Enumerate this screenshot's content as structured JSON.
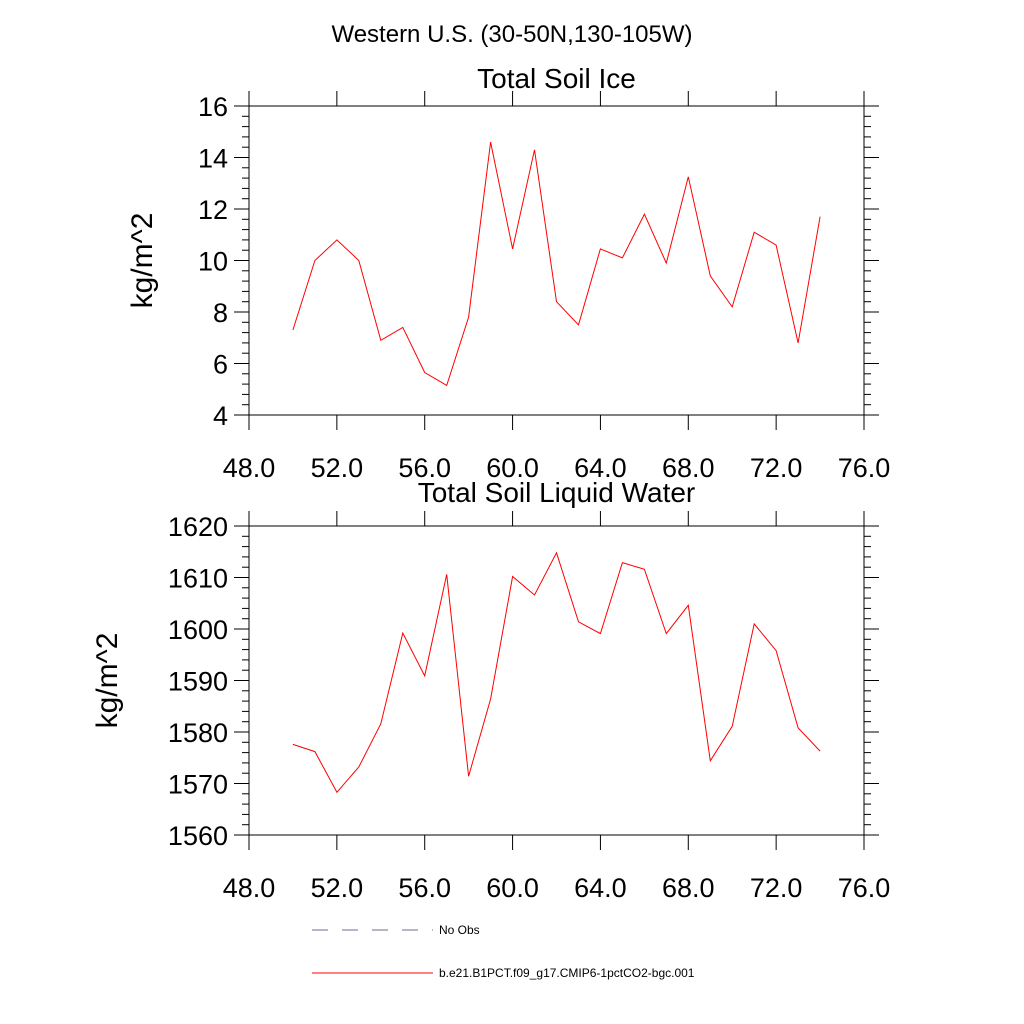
{
  "figure": {
    "title": "Western U.S. (30-50N,130-105W)"
  },
  "legend": {
    "placement": "bottom",
    "entries": [
      {
        "label": "No Obs",
        "style": "dashed",
        "color": "#6b6b9a"
      },
      {
        "label": "b.e21.B1PCT.f09_g17.CMIP6-1pctCO2-bgc.001",
        "style": "solid",
        "color": "#ff0000"
      }
    ]
  },
  "chart_data": [
    {
      "type": "line",
      "title": "Total Soil Ice",
      "xlabel": "",
      "ylabel": "kg/m^2",
      "xlim": [
        48,
        76
      ],
      "ylim": [
        4,
        16
      ],
      "xticks": [
        48,
        52,
        56,
        60,
        64,
        68,
        72,
        76
      ],
      "xtick_labels": [
        "48.0",
        "52.0",
        "56.0",
        "60.0",
        "64.0",
        "68.0",
        "72.0",
        "76.0"
      ],
      "yticks": [
        4,
        6,
        8,
        10,
        12,
        14,
        16
      ],
      "ytick_labels": [
        "4",
        "6",
        "8",
        "10",
        "12",
        "14",
        "16"
      ],
      "grid": false,
      "series": [
        {
          "name": "b.e21.B1PCT.f09_g17.CMIP6-1pctCO2-bgc.001",
          "color": "#ff0000",
          "x": [
            50,
            51,
            52,
            53,
            54,
            55,
            56,
            57,
            58,
            59,
            60,
            61,
            62,
            63,
            64,
            65,
            66,
            67,
            68,
            69,
            70,
            71,
            72,
            73,
            74
          ],
          "y": [
            7.3,
            10.0,
            10.8,
            10.0,
            6.9,
            7.4,
            5.65,
            5.15,
            7.8,
            14.6,
            10.45,
            14.3,
            8.4,
            7.5,
            10.45,
            10.1,
            11.8,
            9.9,
            13.25,
            9.4,
            8.2,
            11.1,
            10.6,
            6.8,
            11.7
          ]
        }
      ]
    },
    {
      "type": "line",
      "title": "Total Soil Liquid Water",
      "xlabel": "",
      "ylabel": "kg/m^2",
      "xlim": [
        48,
        76
      ],
      "ylim": [
        1560,
        1620
      ],
      "xticks": [
        48,
        52,
        56,
        60,
        64,
        68,
        72,
        76
      ],
      "xtick_labels": [
        "48.0",
        "52.0",
        "56.0",
        "60.0",
        "64.0",
        "68.0",
        "72.0",
        "76.0"
      ],
      "yticks": [
        1560,
        1570,
        1580,
        1590,
        1600,
        1610,
        1620
      ],
      "ytick_labels": [
        "1560",
        "1570",
        "1580",
        "1590",
        "1600",
        "1610",
        "1620"
      ],
      "grid": false,
      "series": [
        {
          "name": "b.e21.B1PCT.f09_g17.CMIP6-1pctCO2-bgc.001",
          "color": "#ff0000",
          "x": [
            50,
            51,
            52,
            53,
            54,
            55,
            56,
            57,
            58,
            59,
            60,
            61,
            62,
            63,
            64,
            65,
            66,
            67,
            68,
            69,
            70,
            71,
            72,
            73,
            74
          ],
          "y": [
            1577.6,
            1576.2,
            1568.3,
            1573.2,
            1581.6,
            1599.2,
            1590.9,
            1610.6,
            1571.4,
            1586.4,
            1610.2,
            1606.6,
            1614.8,
            1601.4,
            1599.1,
            1612.9,
            1611.6,
            1599.1,
            1604.6,
            1574.4,
            1581.1,
            1601.0,
            1595.8,
            1580.8,
            1576.3
          ]
        }
      ]
    }
  ]
}
